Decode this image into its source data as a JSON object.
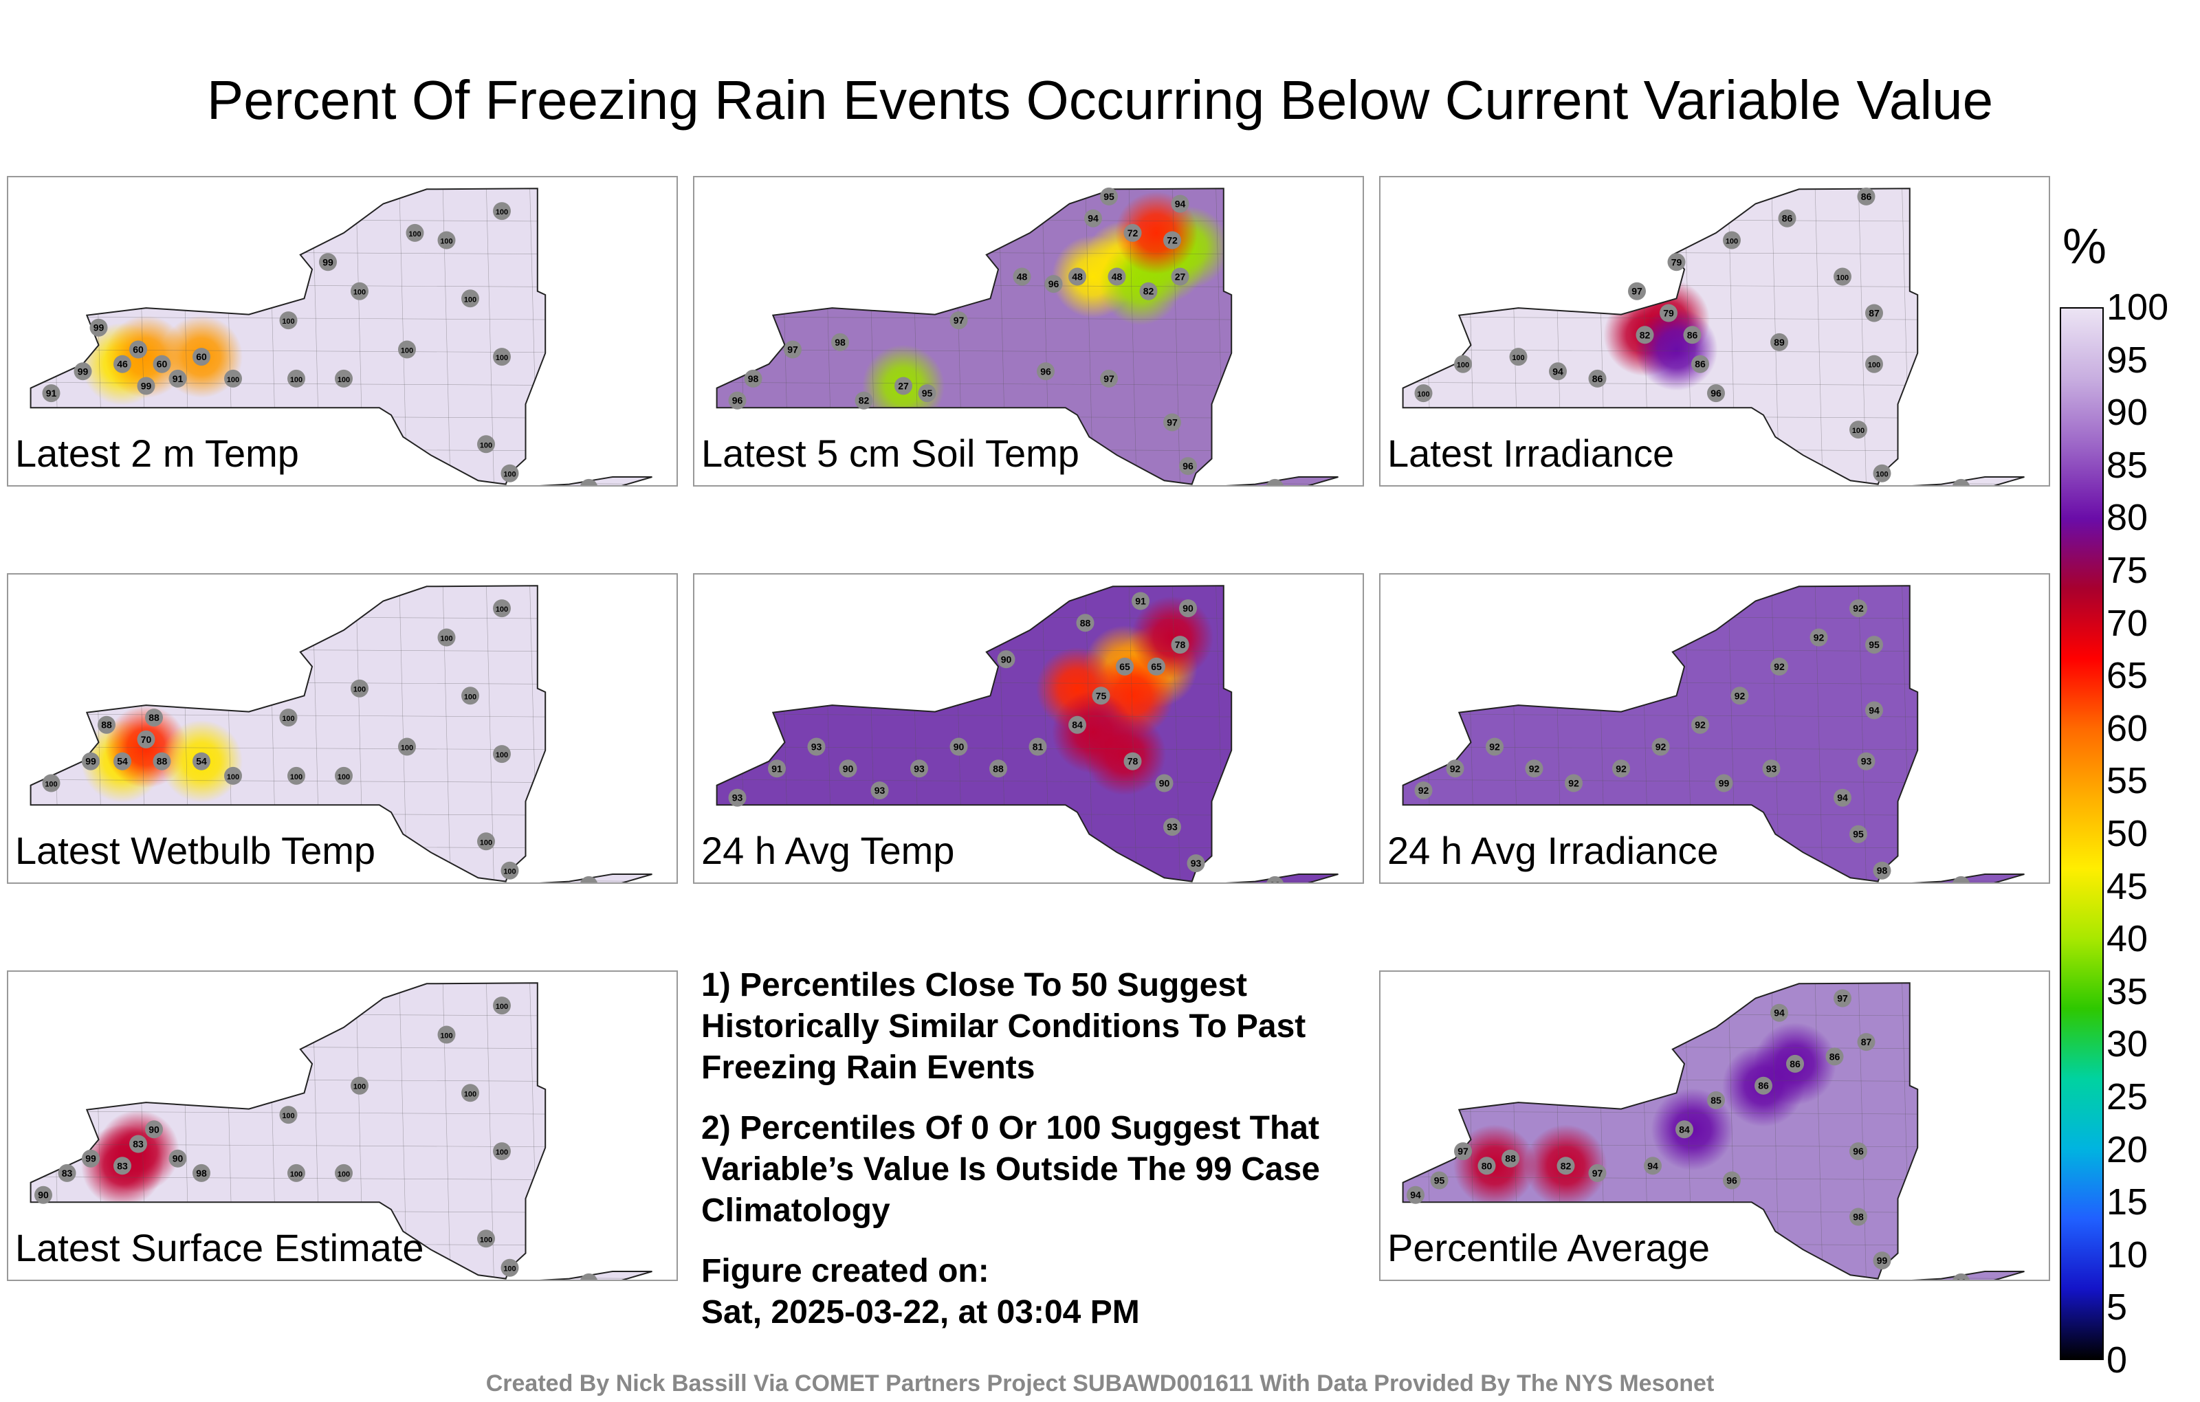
{
  "title": "Percent Of Freezing Rain Events Occurring Below Current Variable Value",
  "panels": [
    {
      "id": "p1",
      "label": "Latest 2 m Temp",
      "base": "#e6def0",
      "hotspots": [
        {
          "lon": -78.6,
          "lat": 42.6,
          "v": 46
        },
        {
          "lon": -78.3,
          "lat": 42.7,
          "v": 60
        },
        {
          "lon": -77.6,
          "lat": 42.7,
          "v": 60
        }
      ],
      "stations": [
        [
          -79.5,
          42.2,
          91
        ],
        [
          -79.1,
          42.5,
          99
        ],
        [
          -78.6,
          42.6,
          46
        ],
        [
          -78.4,
          42.8,
          60
        ],
        [
          -78.1,
          42.6,
          60
        ],
        [
          -77.6,
          42.7,
          60
        ],
        [
          -77.9,
          42.4,
          91
        ],
        [
          -78.3,
          42.3,
          99
        ],
        [
          -78.9,
          43.1,
          99
        ],
        [
          -76.5,
          43.2,
          100
        ],
        [
          -75.6,
          43.6,
          100
        ],
        [
          -74.5,
          44.3,
          100
        ],
        [
          -73.8,
          44.7,
          100
        ],
        [
          -74.2,
          43.5,
          100
        ],
        [
          -73.8,
          42.7,
          100
        ],
        [
          -74.0,
          41.5,
          100
        ],
        [
          -73.7,
          41.1,
          100
        ],
        [
          -73.4,
          40.8,
          100
        ],
        [
          -72.7,
          40.9,
          100
        ],
        [
          -75.8,
          42.4,
          100
        ],
        [
          -76.4,
          42.4,
          100
        ],
        [
          -77.2,
          42.4,
          100
        ],
        [
          -75.0,
          42.8,
          100
        ],
        [
          -74.9,
          44.4,
          100
        ],
        [
          -76.0,
          44.0,
          99
        ]
      ]
    },
    {
      "id": "p2",
      "label": "Latest 5 cm Soil Temp",
      "base": "#9f78c0",
      "hotspots": [
        {
          "lon": -74.6,
          "lat": 44.0,
          "v": 48
        },
        {
          "lon": -74.1,
          "lat": 44.0,
          "v": 27
        },
        {
          "lon": -73.8,
          "lat": 44.2,
          "v": 27
        },
        {
          "lon": -75.0,
          "lat": 43.8,
          "v": 48
        },
        {
          "lon": -74.4,
          "lat": 43.7,
          "v": 27
        },
        {
          "lon": -77.4,
          "lat": 42.3,
          "v": 27
        },
        {
          "lon": -74.2,
          "lat": 44.4,
          "v": 72
        }
      ],
      "stations": [
        [
          -79.5,
          42.1,
          96
        ],
        [
          -79.3,
          42.4,
          98
        ],
        [
          -78.8,
          42.8,
          97
        ],
        [
          -78.2,
          42.9,
          98
        ],
        [
          -77.4,
          42.3,
          27
        ],
        [
          -77.9,
          42.1,
          82
        ],
        [
          -77.1,
          42.2,
          95
        ],
        [
          -76.7,
          43.2,
          97
        ],
        [
          -75.9,
          43.8,
          48
        ],
        [
          -75.5,
          43.7,
          96
        ],
        [
          -75.2,
          43.8,
          48
        ],
        [
          -74.7,
          43.8,
          48
        ],
        [
          -74.3,
          43.6,
          82
        ],
        [
          -73.9,
          43.8,
          27
        ],
        [
          -74.0,
          44.3,
          72
        ],
        [
          -74.5,
          44.4,
          72
        ],
        [
          -75.0,
          44.6,
          94
        ],
        [
          -74.8,
          44.9,
          95
        ],
        [
          -73.9,
          44.8,
          94
        ],
        [
          -75.6,
          42.5,
          96
        ],
        [
          -74.8,
          42.4,
          97
        ],
        [
          -74.0,
          41.8,
          97
        ],
        [
          -73.8,
          41.2,
          96
        ],
        [
          -73.4,
          40.8,
          100
        ],
        [
          -72.7,
          40.9,
          100
        ]
      ]
    },
    {
      "id": "p3",
      "label": "Latest Irradiance",
      "base": "#e8e0f0",
      "hotspots": [
        {
          "lon": -76.7,
          "lat": 43.0,
          "v": 82
        },
        {
          "lon": -76.4,
          "lat": 43.2,
          "v": 79
        },
        {
          "lon": -76.3,
          "lat": 42.8,
          "v": 86
        }
      ],
      "stations": [
        [
          -79.5,
          42.2,
          100
        ],
        [
          -79.0,
          42.6,
          100
        ],
        [
          -78.3,
          42.7,
          100
        ],
        [
          -77.8,
          42.5,
          94
        ],
        [
          -77.3,
          42.4,
          86
        ],
        [
          -76.7,
          43.0,
          82
        ],
        [
          -76.4,
          43.3,
          79
        ],
        [
          -76.1,
          43.0,
          86
        ],
        [
          -76.0,
          42.6,
          86
        ],
        [
          -75.8,
          42.2,
          96
        ],
        [
          -76.8,
          43.6,
          97
        ],
        [
          -76.3,
          44.0,
          79
        ],
        [
          -75.6,
          44.3,
          100
        ],
        [
          -74.9,
          44.6,
          86
        ],
        [
          -73.9,
          44.9,
          86
        ],
        [
          -74.2,
          43.8,
          100
        ],
        [
          -73.8,
          43.3,
          87
        ],
        [
          -73.8,
          42.6,
          100
        ],
        [
          -74.0,
          41.7,
          100
        ],
        [
          -73.7,
          41.1,
          100
        ],
        [
          -73.4,
          40.8,
          100
        ],
        [
          -72.7,
          40.9,
          100
        ],
        [
          -75.0,
          42.9,
          89
        ]
      ]
    },
    {
      "id": "p4",
      "label": "Latest Wetbulb Temp",
      "base": "#e6def0",
      "hotspots": [
        {
          "lon": -78.6,
          "lat": 42.6,
          "v": 54
        },
        {
          "lon": -78.3,
          "lat": 42.8,
          "v": 70
        },
        {
          "lon": -77.6,
          "lat": 42.6,
          "v": 54
        }
      ],
      "stations": [
        [
          -79.5,
          42.3,
          100
        ],
        [
          -79.0,
          42.6,
          99
        ],
        [
          -78.6,
          42.6,
          54
        ],
        [
          -78.3,
          42.9,
          70
        ],
        [
          -78.1,
          42.6,
          88
        ],
        [
          -77.6,
          42.6,
          54
        ],
        [
          -78.8,
          43.1,
          88
        ],
        [
          -78.2,
          43.2,
          88
        ],
        [
          -77.2,
          42.4,
          100
        ],
        [
          -76.5,
          43.2,
          100
        ],
        [
          -75.6,
          43.6,
          100
        ],
        [
          -74.5,
          44.3,
          100
        ],
        [
          -73.8,
          44.7,
          100
        ],
        [
          -74.2,
          43.5,
          100
        ],
        [
          -73.8,
          42.7,
          100
        ],
        [
          -74.0,
          41.5,
          100
        ],
        [
          -73.7,
          41.1,
          100
        ],
        [
          -73.4,
          40.8,
          100
        ],
        [
          -72.7,
          40.9,
          100
        ],
        [
          -75.8,
          42.4,
          100
        ],
        [
          -76.4,
          42.4,
          100
        ],
        [
          -75.0,
          42.8,
          100
        ]
      ]
    },
    {
      "id": "p5",
      "label": "24 h Avg Temp",
      "base": "#7a40b0",
      "hotspots": [
        {
          "lon": -74.6,
          "lat": 43.9,
          "v": 65
        },
        {
          "lon": -74.2,
          "lat": 43.9,
          "v": 65
        },
        {
          "lon": -74.5,
          "lat": 43.5,
          "v": 75
        },
        {
          "lon": -75.2,
          "lat": 43.6,
          "v": 75
        },
        {
          "lon": -74.0,
          "lat": 44.3,
          "v": 78
        },
        {
          "lon": -74.6,
          "lat": 42.7,
          "v": 78
        },
        {
          "lon": -75.0,
          "lat": 43.0,
          "v": 78
        }
      ],
      "stations": [
        [
          -79.5,
          42.1,
          93
        ],
        [
          -79.0,
          42.5,
          91
        ],
        [
          -78.5,
          42.8,
          93
        ],
        [
          -78.1,
          42.5,
          90
        ],
        [
          -77.7,
          42.2,
          93
        ],
        [
          -77.2,
          42.5,
          93
        ],
        [
          -76.7,
          42.8,
          90
        ],
        [
          -76.2,
          42.5,
          88
        ],
        [
          -75.7,
          42.8,
          81
        ],
        [
          -75.2,
          43.1,
          84
        ],
        [
          -74.9,
          43.5,
          75
        ],
        [
          -74.6,
          43.9,
          65
        ],
        [
          -74.2,
          43.9,
          65
        ],
        [
          -73.9,
          44.2,
          78
        ],
        [
          -73.8,
          44.7,
          90
        ],
        [
          -74.4,
          44.8,
          91
        ],
        [
          -75.1,
          44.5,
          88
        ],
        [
          -76.1,
          44.0,
          90
        ],
        [
          -74.5,
          42.6,
          78
        ],
        [
          -74.1,
          42.3,
          90
        ],
        [
          -74.0,
          41.7,
          93
        ],
        [
          -73.7,
          41.2,
          93
        ],
        [
          -73.4,
          40.8,
          93
        ],
        [
          -72.7,
          40.9,
          93
        ]
      ]
    },
    {
      "id": "p6",
      "label": "24 h Avg Irradiance",
      "base": "#8a58bc",
      "hotspots": [],
      "stations": [
        [
          -79.5,
          42.2,
          92
        ],
        [
          -79.1,
          42.5,
          92
        ],
        [
          -78.6,
          42.8,
          92
        ],
        [
          -78.1,
          42.5,
          92
        ],
        [
          -77.6,
          42.3,
          92
        ],
        [
          -77.0,
          42.5,
          92
        ],
        [
          -76.5,
          42.8,
          92
        ],
        [
          -76.0,
          43.1,
          92
        ],
        [
          -75.5,
          43.5,
          92
        ],
        [
          -75.0,
          43.9,
          92
        ],
        [
          -74.5,
          44.3,
          92
        ],
        [
          -74.0,
          44.7,
          92
        ],
        [
          -73.8,
          44.2,
          95
        ],
        [
          -73.8,
          43.3,
          94
        ],
        [
          -73.9,
          42.6,
          93
        ],
        [
          -74.2,
          42.1,
          94
        ],
        [
          -74.0,
          41.6,
          95
        ],
        [
          -73.7,
          41.1,
          98
        ],
        [
          -73.4,
          40.8,
          98
        ],
        [
          -72.7,
          40.9,
          100
        ],
        [
          -75.7,
          42.3,
          99
        ],
        [
          -75.1,
          42.5,
          93
        ]
      ]
    },
    {
      "id": "p7",
      "label": "Latest Surface Estimate",
      "base": "#e6def0",
      "hotspots": [
        {
          "lon": -78.4,
          "lat": 42.7,
          "v": 83
        },
        {
          "lon": -78.6,
          "lat": 42.5,
          "v": 83
        }
      ],
      "stations": [
        [
          -79.6,
          42.1,
          90
        ],
        [
          -79.3,
          42.4,
          83
        ],
        [
          -79.0,
          42.6,
          99
        ],
        [
          -78.6,
          42.5,
          83
        ],
        [
          -78.4,
          42.8,
          83
        ],
        [
          -78.2,
          43.0,
          90
        ],
        [
          -77.9,
          42.6,
          90
        ],
        [
          -77.6,
          42.4,
          98
        ],
        [
          -76.5,
          43.2,
          100
        ],
        [
          -75.6,
          43.6,
          100
        ],
        [
          -74.5,
          44.3,
          100
        ],
        [
          -73.8,
          44.7,
          100
        ],
        [
          -74.2,
          43.5,
          100
        ],
        [
          -73.8,
          42.7,
          100
        ],
        [
          -74.0,
          41.5,
          100
        ],
        [
          -73.7,
          41.1,
          100
        ],
        [
          -73.4,
          40.8,
          100
        ],
        [
          -72.7,
          40.9,
          100
        ],
        [
          -75.8,
          42.4,
          100
        ],
        [
          -76.4,
          42.4,
          100
        ]
      ]
    },
    {
      "id": "p9",
      "label": "Percentile Average",
      "base": "#a888cc",
      "hotspots": [
        {
          "lon": -78.6,
          "lat": 42.5,
          "v": 80
        },
        {
          "lon": -77.7,
          "lat": 42.5,
          "v": 82
        },
        {
          "lon": -75.2,
          "lat": 43.6,
          "v": 86
        },
        {
          "lon": -74.8,
          "lat": 43.9,
          "v": 86
        },
        {
          "lon": -76.1,
          "lat": 43.0,
          "v": 84
        }
      ],
      "stations": [
        [
          -79.6,
          42.1,
          94
        ],
        [
          -79.3,
          42.3,
          95
        ],
        [
          -79.0,
          42.7,
          97
        ],
        [
          -78.7,
          42.5,
          80
        ],
        [
          -78.4,
          42.6,
          88
        ],
        [
          -77.7,
          42.5,
          82
        ],
        [
          -77.3,
          42.4,
          97
        ],
        [
          -76.6,
          42.5,
          94
        ],
        [
          -76.2,
          43.0,
          84
        ],
        [
          -75.8,
          43.4,
          85
        ],
        [
          -75.2,
          43.6,
          86
        ],
        [
          -74.8,
          43.9,
          86
        ],
        [
          -74.3,
          44.0,
          86
        ],
        [
          -73.9,
          44.2,
          87
        ],
        [
          -74.2,
          44.8,
          97
        ],
        [
          -75.0,
          44.6,
          94
        ],
        [
          -74.0,
          42.7,
          96
        ],
        [
          -74.0,
          41.8,
          98
        ],
        [
          -73.7,
          41.2,
          99
        ],
        [
          -73.4,
          40.8,
          99
        ],
        [
          -72.7,
          40.9,
          99
        ],
        [
          -75.6,
          42.3,
          96
        ]
      ]
    }
  ],
  "notes": {
    "n1": "1) Percentiles Close To 50 Suggest Historically Similar Conditions To Past Freezing Rain Events",
    "n2": "2) Percentiles Of 0 Or 100 Suggest That Variable’s Value Is Outside The 99 Case Climatology",
    "n3a": "Figure created on:",
    "n3b": "Sat, 2025-03-22, at 03:04 PM"
  },
  "colorbar": {
    "unit": "%",
    "ticks": [
      "100",
      "95",
      "90",
      "85",
      "80",
      "75",
      "70",
      "65",
      "60",
      "55",
      "50",
      "45",
      "40",
      "35",
      "30",
      "25",
      "20",
      "15",
      "10",
      "5",
      "0"
    ],
    "stops": [
      "#ece4f4",
      "#c8aee0",
      "#9a62c6",
      "#6a0ca8",
      "#a8002e",
      "#ff0000",
      "#ff6a00",
      "#ffb000",
      "#ffee00",
      "#a8e800",
      "#2ec800",
      "#00d2a0",
      "#00b4e0",
      "#2060ff",
      "#1414c8",
      "#000000"
    ]
  },
  "credit": "Created By Nick Bassill Via COMET Partners Project SUBAWD001611 With Data Provided By The NYS Mesonet"
}
